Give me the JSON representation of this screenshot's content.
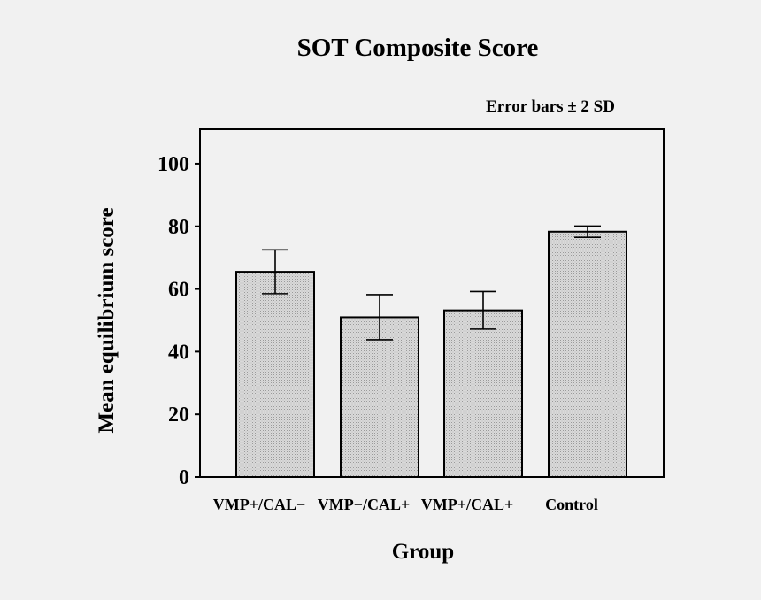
{
  "chart_data": {
    "type": "bar",
    "title": "SOT Composite Score",
    "annotation": "Error bars ± 2 SD",
    "xlabel": "Group",
    "ylabel": "Mean equilibrium score",
    "categories": [
      "VMP+/CAL−",
      "VMP−/CAL+",
      "VMP+/CAL+",
      "Control"
    ],
    "values": [
      65.5,
      51,
      53.2,
      78.3
    ],
    "error_plus_minus": [
      7,
      7.2,
      6,
      1.8
    ],
    "ylim": [
      0,
      111
    ],
    "yticks": [
      0,
      20,
      40,
      60,
      80,
      100
    ],
    "grid": false,
    "colors": {
      "bar_fill": "#d9d9d9",
      "bar_stroke": "#000000",
      "background": "#f1f1f1"
    }
  }
}
